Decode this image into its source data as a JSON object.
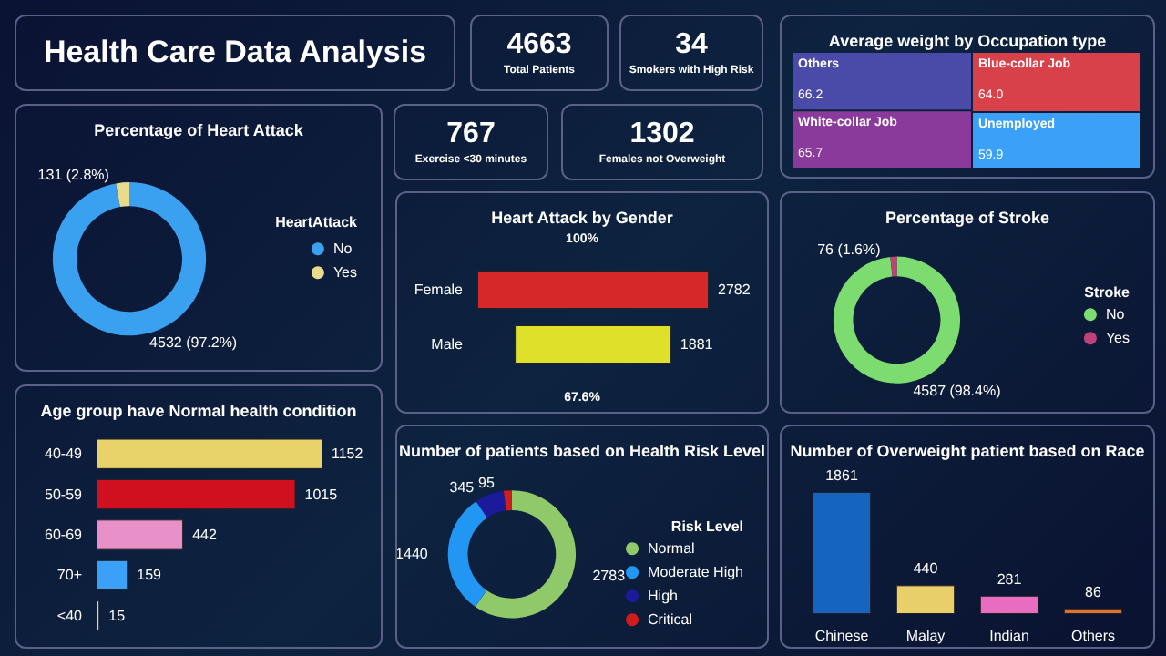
{
  "chart_data": [
    {
      "type": "other",
      "title": "Health Care Data Analysis"
    },
    {
      "type": "other",
      "categories": [
        "Total Patients"
      ],
      "values": [
        4663
      ],
      "data_labels": true
    },
    {
      "type": "other",
      "categories": [
        "Smokers with High Risk"
      ],
      "values": [
        34
      ],
      "data_labels": true
    },
    {
      "type": "other",
      "categories": [
        "Exercise <30 minutes"
      ],
      "values": [
        767
      ],
      "data_labels": true
    },
    {
      "type": "other",
      "categories": [
        "Females not Overweight"
      ],
      "values": [
        1302
      ],
      "data_labels": true
    },
    {
      "type": "other",
      "title": "Average weight by Occupation type",
      "categories": [
        "Others",
        "Blue-collar Job",
        "White-collar Job",
        "Unemployed"
      ],
      "values": [
        66.2,
        64.0,
        65.7,
        59.9
      ],
      "value_labels": [
        "66.2",
        "64.0",
        "65.7",
        "59.9"
      ],
      "colors": [
        "#4a4aa8",
        "#d8404a",
        "#8a3a9a",
        "#3aa0f8"
      ]
    },
    {
      "type": "donut",
      "title": "Percentage of Heart Attack",
      "legend_title": "HeartAttack",
      "legend": "right",
      "categories": [
        "No",
        "Yes"
      ],
      "values": [
        4532,
        131
      ],
      "value_labels": [
        "4532 (97.2%)",
        "131 (2.8%)"
      ],
      "colors": [
        "#3aa0f0",
        "#e8dc8c"
      ]
    },
    {
      "type": "other",
      "title": "Heart Attack by Gender",
      "categories": [
        "Female",
        "Male"
      ],
      "values": [
        2782,
        1881
      ],
      "colors": [
        "#d62828",
        "#dfe02a"
      ],
      "data_labels": true,
      "annotations": [
        "100%",
        "67.6%"
      ]
    },
    {
      "type": "donut",
      "title": "Percentage of Stroke",
      "legend_title": "Stroke",
      "legend": "right",
      "categories": [
        "No",
        "Yes"
      ],
      "values": [
        4587,
        76
      ],
      "value_labels": [
        "4587 (98.4%)",
        "76 (1.6%)"
      ],
      "colors": [
        "#7ddc6f",
        "#c0407a"
      ]
    },
    {
      "type": "bar",
      "orientation": "horizontal",
      "title": "Age group have Normal health condition",
      "categories": [
        "40-49",
        "50-59",
        "60-69",
        "70+",
        "<40"
      ],
      "values": [
        1152,
        1015,
        442,
        159,
        15
      ],
      "colors": [
        "#e8d36a",
        "#d0101e",
        "#e890c8",
        "#3aa0f8",
        "#d0d0e8"
      ],
      "data_labels": true,
      "tick_labels": "y"
    },
    {
      "type": "donut",
      "title": "Number of patients based on Health Risk Level",
      "legend_title": "Risk Level",
      "legend": "right",
      "categories": [
        "Normal",
        "Moderate High",
        "High",
        "Critical"
      ],
      "values": [
        2783,
        1440,
        345,
        95
      ],
      "colors": [
        "#8fc96a",
        "#2196f3",
        "#1a1a9a",
        "#d01c1c"
      ],
      "data_labels": true
    },
    {
      "type": "bar",
      "title": "Number of Overweight patient based on Race",
      "categories": [
        "Chinese",
        "Malay",
        "Indian",
        "Others"
      ],
      "values": [
        1861,
        440,
        281,
        86
      ],
      "colors": [
        "#1565c0",
        "#e8cf6a",
        "#e86cc0",
        "#e07030"
      ],
      "data_labels": true,
      "tick_labels": "x"
    }
  ]
}
